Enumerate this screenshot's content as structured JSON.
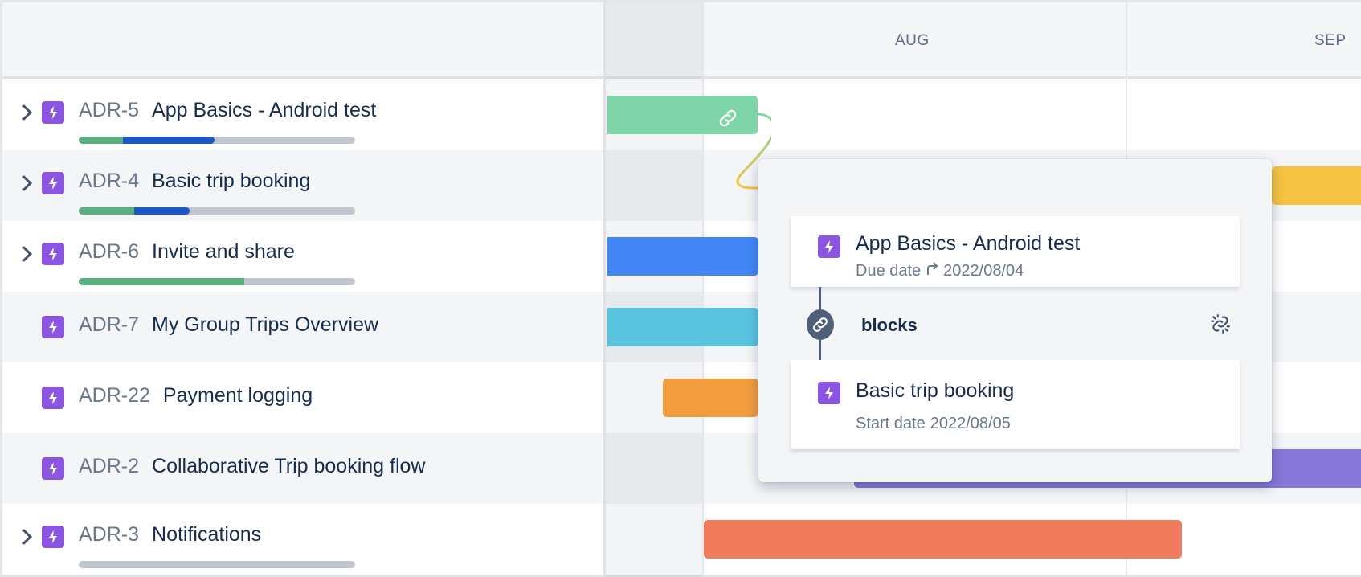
{
  "timeline": {
    "months": [
      "AUG",
      "SEP"
    ]
  },
  "rows": [
    {
      "key": "ADR-5",
      "title": "App Basics - Android test",
      "expandable": true,
      "progress": {
        "done": 16,
        "in_progress": 33
      },
      "bar_color": "#7ed6a8"
    },
    {
      "key": "ADR-4",
      "title": "Basic trip booking",
      "expandable": true,
      "progress": {
        "done": 20,
        "in_progress": 20
      },
      "bar_color": "#f6c342"
    },
    {
      "key": "ADR-6",
      "title": "Invite and share",
      "expandable": true,
      "progress": {
        "done": 60,
        "in_progress": 0
      },
      "bar_color": "#4287f5"
    },
    {
      "key": "ADR-7",
      "title": "My Group Trips Overview",
      "expandable": false,
      "bar_color": "#59c4e0"
    },
    {
      "key": "ADR-22",
      "title": "Payment logging",
      "expandable": false,
      "bar_color": "#f19d3e"
    },
    {
      "key": "ADR-2",
      "title": "Collaborative Trip booking flow",
      "expandable": false,
      "bar_color": "#8777d9"
    },
    {
      "key": "ADR-3",
      "title": "Notifications",
      "expandable": true,
      "progress": {
        "done": 0,
        "in_progress": 0
      },
      "bar_color": "#f07c5d"
    }
  ],
  "colors": {
    "epic": "#8b55e0",
    "done": "#5aae80",
    "in_progress": "#1d56c8",
    "todo": "#c1c7d0"
  },
  "dependency_popover": {
    "source": {
      "title": "App Basics - Android test",
      "date_label": "Due date",
      "date": "2022/08/04"
    },
    "relation": "blocks",
    "target": {
      "title": "Basic trip booking",
      "date_label": "Start date",
      "date": "2022/08/05"
    }
  }
}
